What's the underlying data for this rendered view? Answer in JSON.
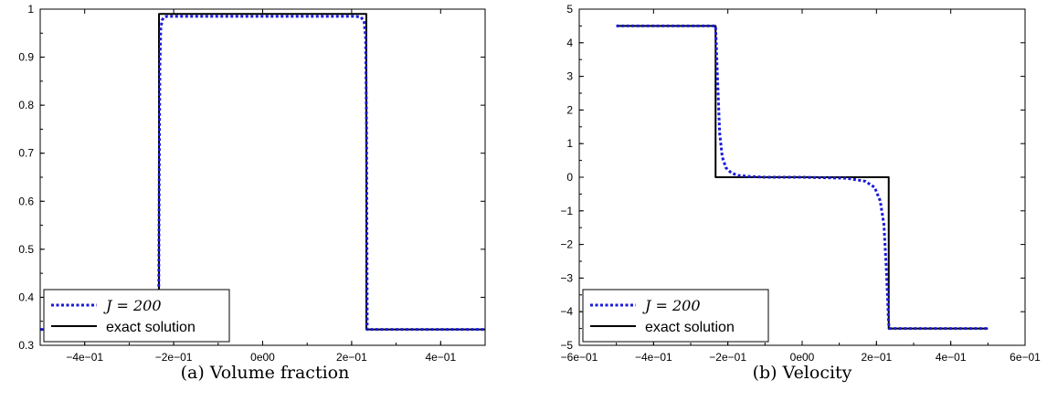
{
  "chart_data": [
    {
      "type": "line",
      "caption": "(a) Volume fraction",
      "xlim": [
        -0.5,
        0.5
      ],
      "ylim": [
        0.3,
        1.0
      ],
      "xticks": [
        -0.4,
        -0.2,
        0.0,
        0.2,
        0.4
      ],
      "xtick_labels": [
        "−4e−01",
        "−2e−01",
        "0e00",
        "2e−01",
        "4e−01"
      ],
      "yticks": [
        0.3,
        0.4,
        0.5,
        0.6,
        0.7,
        0.8,
        0.9,
        1.0
      ],
      "ytick_labels": [
        "0.3",
        "0.4",
        "0.5",
        "0.6",
        "0.7",
        "0.8",
        "0.9",
        "1"
      ],
      "legend_position": "bottom-left",
      "series": [
        {
          "name": "J = 200",
          "style": "dotted",
          "color": "#1a1adb",
          "x": [
            -0.5,
            -0.235,
            -0.2335,
            -0.2325,
            -0.231,
            -0.229,
            -0.226,
            -0.222,
            -0.215,
            0.0,
            0.21,
            0.221,
            0.228,
            0.2315,
            0.2335,
            0.235,
            0.5
          ],
          "y": [
            0.333,
            0.333,
            0.42,
            0.65,
            0.88,
            0.96,
            0.977,
            0.983,
            0.985,
            0.985,
            0.985,
            0.983,
            0.975,
            0.94,
            0.75,
            0.333,
            0.333
          ]
        },
        {
          "name": "exact solution",
          "style": "solid",
          "color": "#000000",
          "x": [
            -0.5,
            -0.233,
            -0.233,
            0.233,
            0.233,
            0.5
          ],
          "y": [
            0.333,
            0.333,
            0.99,
            0.99,
            0.333,
            0.333
          ]
        }
      ]
    },
    {
      "type": "line",
      "caption": "(b) Velocity",
      "xlim": [
        -0.6,
        0.6
      ],
      "ylim": [
        -5,
        5
      ],
      "xticks": [
        -0.6,
        -0.4,
        -0.2,
        0.0,
        0.2,
        0.4,
        0.6
      ],
      "xtick_labels": [
        "−6e−01",
        "−4e−01",
        "−2e−01",
        "0e00",
        "2e−01",
        "4e−01",
        "6e−01"
      ],
      "yticks": [
        -5,
        -4,
        -3,
        -2,
        -1,
        0,
        1,
        2,
        3,
        4,
        5
      ],
      "ytick_labels": [
        "−5",
        "−4",
        "−3",
        "−2",
        "−1",
        "0",
        "1",
        "2",
        "3",
        "4",
        "5"
      ],
      "legend_position": "bottom-left",
      "series": [
        {
          "name": "J = 200",
          "style": "dotted",
          "color": "#1a1adb",
          "x": [
            -0.5,
            -0.233,
            -0.228,
            -0.222,
            -0.215,
            -0.205,
            -0.19,
            -0.17,
            -0.14,
            -0.1,
            0.0,
            0.12,
            0.17,
            0.195,
            0.21,
            0.22,
            0.226,
            0.23,
            0.232,
            0.234,
            0.5
          ],
          "y": [
            4.5,
            4.5,
            3.0,
            1.3,
            0.6,
            0.28,
            0.12,
            0.05,
            0.02,
            0.0,
            0.0,
            -0.03,
            -0.12,
            -0.3,
            -0.7,
            -1.4,
            -2.6,
            -3.6,
            -4.2,
            -4.5,
            -4.5
          ]
        },
        {
          "name": "exact solution",
          "style": "solid",
          "color": "#000000",
          "x": [
            -0.5,
            -0.233,
            -0.233,
            0.233,
            0.233,
            0.5
          ],
          "y": [
            4.5,
            4.5,
            0.0,
            0.0,
            -4.5,
            -4.5
          ]
        }
      ]
    }
  ],
  "legend": {
    "numeric_label": "J = 200",
    "exact_label": "exact solution"
  }
}
